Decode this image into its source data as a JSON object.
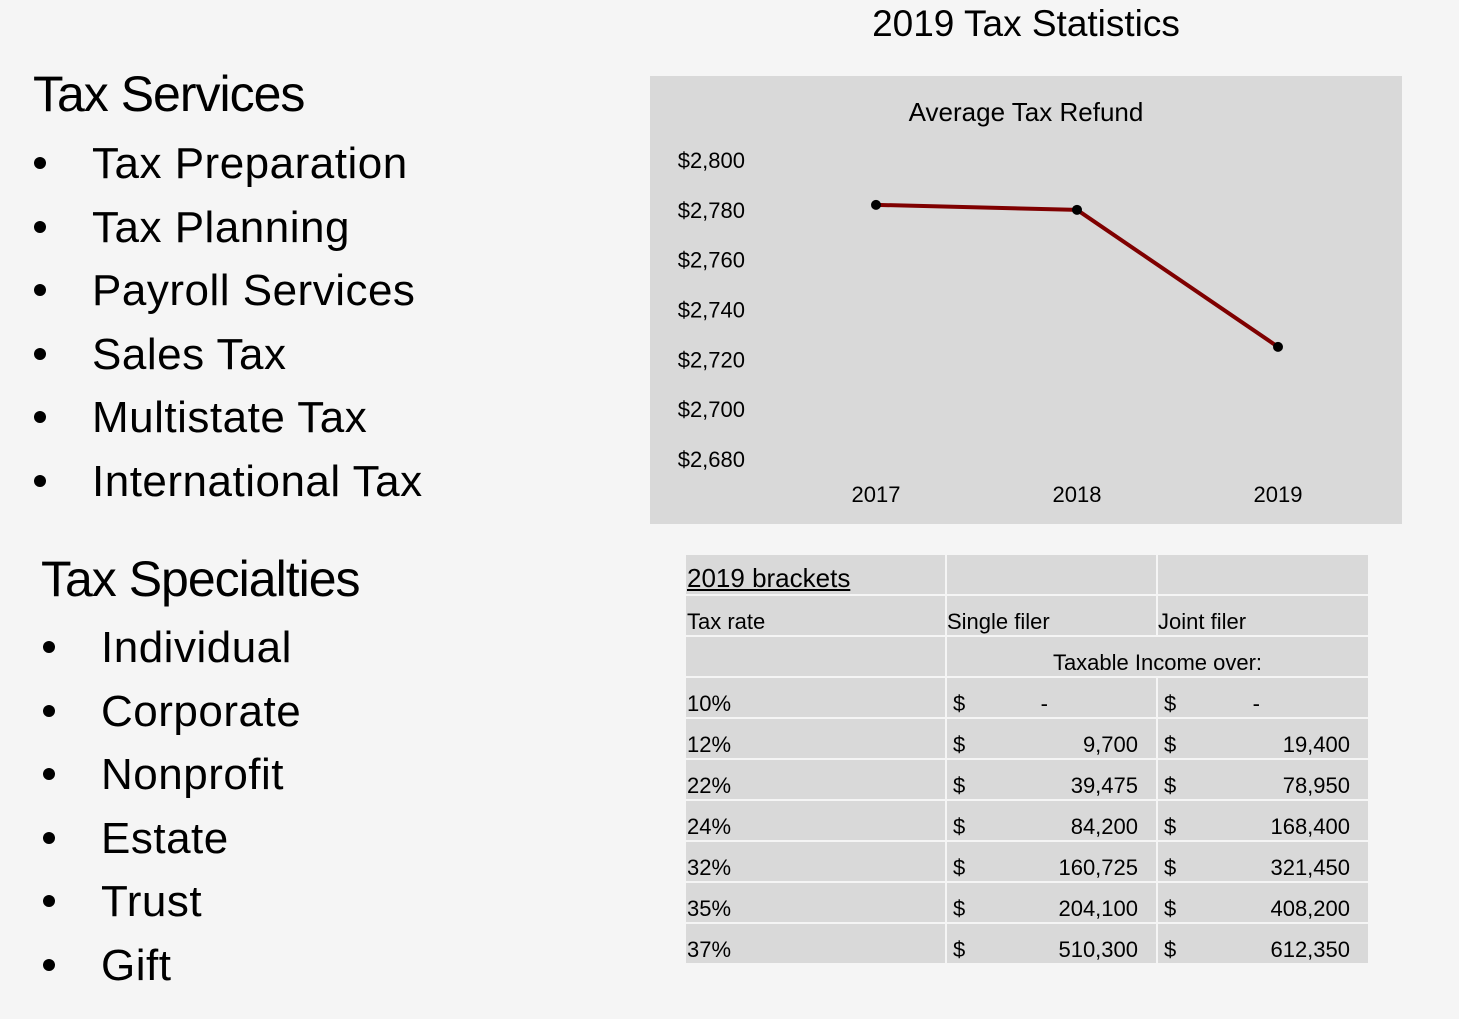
{
  "title": "2019 Tax Statistics",
  "services": {
    "heading": "Tax Services",
    "items": [
      "Tax Preparation",
      "Tax Planning",
      "Payroll Services",
      "Sales Tax",
      "Multistate Tax",
      "International Tax"
    ]
  },
  "specialties": {
    "heading": "Tax Specialties",
    "items": [
      "Individual",
      "Corporate",
      "Nonprofit",
      "Estate",
      "Trust",
      "Gift"
    ]
  },
  "chart_data": {
    "type": "line",
    "title": "Average Tax Refund",
    "categories": [
      "2017",
      "2018",
      "2019"
    ],
    "series": [
      {
        "values": [
          2782,
          2780,
          2725
        ],
        "color": "#7f0000"
      }
    ],
    "ylim": [
      2680,
      2800
    ],
    "yticks": [
      2800,
      2780,
      2760,
      2740,
      2720,
      2700,
      2680
    ],
    "ytick_labels": [
      "$2,800",
      "$2,780",
      "$2,760",
      "$2,740",
      "$2,720",
      "$2,700",
      "$2,680"
    ],
    "xlabel": "",
    "ylabel": "",
    "grid": false,
    "legend": "none",
    "background": "#d9d9d9"
  },
  "brackets": {
    "caption": "2019 brackets",
    "headers": [
      "Tax rate",
      "Single filer",
      "Joint filer"
    ],
    "subheader": "Taxable Income over:",
    "currency": "$",
    "rows": [
      {
        "rate": "10%",
        "single": "-",
        "joint": "-"
      },
      {
        "rate": "12%",
        "single": "9,700",
        "joint": "19,400"
      },
      {
        "rate": "22%",
        "single": "39,475",
        "joint": "78,950"
      },
      {
        "rate": "24%",
        "single": "84,200",
        "joint": "168,400"
      },
      {
        "rate": "32%",
        "single": "160,725",
        "joint": "321,450"
      },
      {
        "rate": "35%",
        "single": "204,100",
        "joint": "408,200"
      },
      {
        "rate": "37%",
        "single": "510,300",
        "joint": "612,350"
      }
    ]
  }
}
